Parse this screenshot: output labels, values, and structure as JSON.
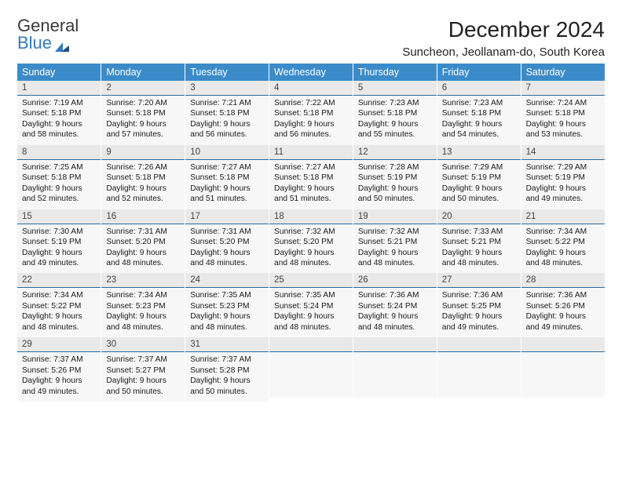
{
  "logo": {
    "line1": "General",
    "line2": "Blue"
  },
  "header": {
    "month_title": "December 2024",
    "location": "Suncheon, Jeollanam-do, South Korea"
  },
  "columns": [
    "Sunday",
    "Monday",
    "Tuesday",
    "Wednesday",
    "Thursday",
    "Friday",
    "Saturday"
  ],
  "colors": {
    "header_bg": "#3b8bc9",
    "header_fg": "#ffffff",
    "daynum_bg": "#e9e9e9",
    "daybody_bg": "#f7f7f7",
    "rule": "#2a6aa0"
  },
  "weeks": [
    [
      {
        "n": "1",
        "sunrise": "7:19 AM",
        "sunset": "5:18 PM",
        "daylight": "9 hours and 58 minutes."
      },
      {
        "n": "2",
        "sunrise": "7:20 AM",
        "sunset": "5:18 PM",
        "daylight": "9 hours and 57 minutes."
      },
      {
        "n": "3",
        "sunrise": "7:21 AM",
        "sunset": "5:18 PM",
        "daylight": "9 hours and 56 minutes."
      },
      {
        "n": "4",
        "sunrise": "7:22 AM",
        "sunset": "5:18 PM",
        "daylight": "9 hours and 56 minutes."
      },
      {
        "n": "5",
        "sunrise": "7:23 AM",
        "sunset": "5:18 PM",
        "daylight": "9 hours and 55 minutes."
      },
      {
        "n": "6",
        "sunrise": "7:23 AM",
        "sunset": "5:18 PM",
        "daylight": "9 hours and 54 minutes."
      },
      {
        "n": "7",
        "sunrise": "7:24 AM",
        "sunset": "5:18 PM",
        "daylight": "9 hours and 53 minutes."
      }
    ],
    [
      {
        "n": "8",
        "sunrise": "7:25 AM",
        "sunset": "5:18 PM",
        "daylight": "9 hours and 52 minutes."
      },
      {
        "n": "9",
        "sunrise": "7:26 AM",
        "sunset": "5:18 PM",
        "daylight": "9 hours and 52 minutes."
      },
      {
        "n": "10",
        "sunrise": "7:27 AM",
        "sunset": "5:18 PM",
        "daylight": "9 hours and 51 minutes."
      },
      {
        "n": "11",
        "sunrise": "7:27 AM",
        "sunset": "5:18 PM",
        "daylight": "9 hours and 51 minutes."
      },
      {
        "n": "12",
        "sunrise": "7:28 AM",
        "sunset": "5:19 PM",
        "daylight": "9 hours and 50 minutes."
      },
      {
        "n": "13",
        "sunrise": "7:29 AM",
        "sunset": "5:19 PM",
        "daylight": "9 hours and 50 minutes."
      },
      {
        "n": "14",
        "sunrise": "7:29 AM",
        "sunset": "5:19 PM",
        "daylight": "9 hours and 49 minutes."
      }
    ],
    [
      {
        "n": "15",
        "sunrise": "7:30 AM",
        "sunset": "5:19 PM",
        "daylight": "9 hours and 49 minutes."
      },
      {
        "n": "16",
        "sunrise": "7:31 AM",
        "sunset": "5:20 PM",
        "daylight": "9 hours and 48 minutes."
      },
      {
        "n": "17",
        "sunrise": "7:31 AM",
        "sunset": "5:20 PM",
        "daylight": "9 hours and 48 minutes."
      },
      {
        "n": "18",
        "sunrise": "7:32 AM",
        "sunset": "5:20 PM",
        "daylight": "9 hours and 48 minutes."
      },
      {
        "n": "19",
        "sunrise": "7:32 AM",
        "sunset": "5:21 PM",
        "daylight": "9 hours and 48 minutes."
      },
      {
        "n": "20",
        "sunrise": "7:33 AM",
        "sunset": "5:21 PM",
        "daylight": "9 hours and 48 minutes."
      },
      {
        "n": "21",
        "sunrise": "7:34 AM",
        "sunset": "5:22 PM",
        "daylight": "9 hours and 48 minutes."
      }
    ],
    [
      {
        "n": "22",
        "sunrise": "7:34 AM",
        "sunset": "5:22 PM",
        "daylight": "9 hours and 48 minutes."
      },
      {
        "n": "23",
        "sunrise": "7:34 AM",
        "sunset": "5:23 PM",
        "daylight": "9 hours and 48 minutes."
      },
      {
        "n": "24",
        "sunrise": "7:35 AM",
        "sunset": "5:23 PM",
        "daylight": "9 hours and 48 minutes."
      },
      {
        "n": "25",
        "sunrise": "7:35 AM",
        "sunset": "5:24 PM",
        "daylight": "9 hours and 48 minutes."
      },
      {
        "n": "26",
        "sunrise": "7:36 AM",
        "sunset": "5:24 PM",
        "daylight": "9 hours and 48 minutes."
      },
      {
        "n": "27",
        "sunrise": "7:36 AM",
        "sunset": "5:25 PM",
        "daylight": "9 hours and 49 minutes."
      },
      {
        "n": "28",
        "sunrise": "7:36 AM",
        "sunset": "5:26 PM",
        "daylight": "9 hours and 49 minutes."
      }
    ],
    [
      {
        "n": "29",
        "sunrise": "7:37 AM",
        "sunset": "5:26 PM",
        "daylight": "9 hours and 49 minutes."
      },
      {
        "n": "30",
        "sunrise": "7:37 AM",
        "sunset": "5:27 PM",
        "daylight": "9 hours and 50 minutes."
      },
      {
        "n": "31",
        "sunrise": "7:37 AM",
        "sunset": "5:28 PM",
        "daylight": "9 hours and 50 minutes."
      },
      null,
      null,
      null,
      null
    ]
  ],
  "labels": {
    "sunrise": "Sunrise:",
    "sunset": "Sunset:",
    "daylight": "Daylight:"
  }
}
